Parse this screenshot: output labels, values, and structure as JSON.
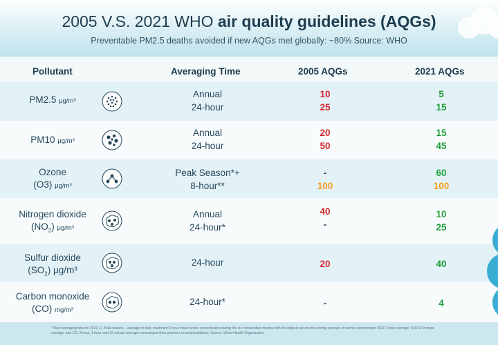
{
  "header": {
    "title_regular": "2005 V.S. 2021 WHO ",
    "title_bold": "air quality guidelines (AQGs)",
    "subtitle": "Preventable PM2.5 deaths avoided if new AQGs met globally: ~80% Source: WHO"
  },
  "columns": {
    "pollutant": "Pollutant",
    "averaging_time": "Averaging Time",
    "aqg_2005": "2005 AQGs",
    "aqg_2021": "2021 AQGs"
  },
  "rows": [
    {
      "name": "PM2.5",
      "formula_open": "",
      "formula_sub": "",
      "formula_close": "",
      "unit": "μg/m³",
      "icon": "particles-icon",
      "avg_1": "Annual",
      "avg_2": "24-hour",
      "v05_1": "10",
      "v05_2": "25",
      "v21_1": "5",
      "v21_2": "15"
    },
    {
      "name": "PM10",
      "formula_open": "",
      "formula_sub": "",
      "formula_close": "",
      "unit": "μg/m³",
      "icon": "particles-large-icon",
      "avg_1": "Annual",
      "avg_2": "24-hour",
      "v05_1": "20",
      "v05_2": "50",
      "v21_1": "15",
      "v21_2": "45"
    },
    {
      "name": "Ozone",
      "formula_open": "(O3) ",
      "formula_sub": "",
      "formula_close": "",
      "unit": "μg/m³",
      "icon": "ozone-molecule-icon",
      "avg_1": "Peak Season*+",
      "avg_2": "8-hour**",
      "v05_1": "-",
      "v05_2": "100",
      "v21_1": "60",
      "v21_2": "100"
    },
    {
      "name": "Nitrogen dioxide",
      "formula_open": "(NO",
      "formula_sub": "2",
      "formula_close": ")",
      "unit": "μg/m³",
      "icon": "no2-molecule-icon",
      "avg_1": "Annual",
      "avg_2": "24-hour*",
      "v05_1": "40",
      "v05_2": "-",
      "v21_1": "10",
      "v21_2": "25"
    },
    {
      "name": "Sulfur dioxide",
      "formula_open": "(SO",
      "formula_sub": "2",
      "formula_close": ")",
      "unit": "μg/m³",
      "icon": "so2-molecule-icon",
      "avg_1": "24-hour",
      "avg_2": "",
      "v05_1": "20",
      "v05_2": "",
      "v21_1": "40",
      "v21_2": ""
    },
    {
      "name": "Carbon monoxide",
      "formula_open": "(CO) ",
      "formula_sub": "",
      "formula_close": "",
      "unit": "mg/m³",
      "icon": "co-molecule-icon",
      "avg_1": "24-hour*",
      "avg_2": "",
      "v05_1": "-",
      "v05_2": "",
      "v21_1": "4",
      "v21_2": ""
    }
  ],
  "footnote": "* New averaging time for 2021  |  + Peak season – average of daily maximum 8-hour mean ozone concentration during the six consecutive months with the highest six-month running average of ozone concentration  NO2 1-hour average; SO2 10-minute average; and CO, 8-hour, 1-hour, and 15-minute averages unchanged from previous recommendations.  Source: World Health Organization",
  "colors": {
    "red": "#d8262e",
    "orange": "#f39a1c",
    "green": "#1e9e3a",
    "text": "#26475a"
  }
}
